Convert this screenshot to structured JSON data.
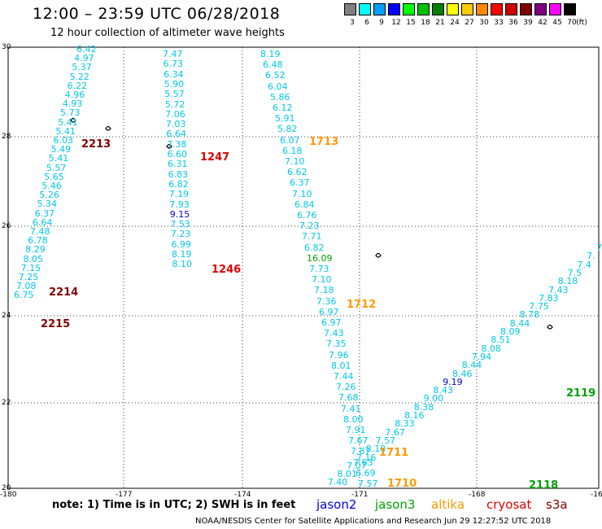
{
  "title": "12:00 – 23:59 UTC 06/28/2018",
  "subtitle": "12 hour collection of altimeter wave heights",
  "colorbar": {
    "unit": "(ft)",
    "entries": [
      {
        "label": "3",
        "color": "#808080"
      },
      {
        "label": "6",
        "color": "#00ffff"
      },
      {
        "label": "9",
        "color": "#00a0ff"
      },
      {
        "label": "12",
        "color": "#0000ff"
      },
      {
        "label": "15",
        "color": "#00ff00"
      },
      {
        "label": "18",
        "color": "#00c000"
      },
      {
        "label": "21",
        "color": "#008000"
      },
      {
        "label": "24",
        "color": "#ffff00"
      },
      {
        "label": "27",
        "color": "#ffcc00"
      },
      {
        "label": "30",
        "color": "#ff8800"
      },
      {
        "label": "33",
        "color": "#ff0000"
      },
      {
        "label": "36",
        "color": "#cc0000"
      },
      {
        "label": "39",
        "color": "#800000"
      },
      {
        "label": "42",
        "color": "#800080"
      },
      {
        "label": "45",
        "color": "#ff00ff"
      },
      {
        "label": "70",
        "color": "#000000"
      }
    ]
  },
  "axes": {
    "x_ticks": [
      "-180",
      "-177",
      "-174",
      "-171",
      "-168",
      "-16"
    ],
    "y_ticks": [
      "30",
      "28",
      "26",
      "24",
      "22",
      "20"
    ]
  },
  "tracks": [
    {
      "color": "#00c8e8",
      "labels": [
        "6.42",
        "4.97",
        "5.37",
        "5.22",
        "6.22",
        "4.96",
        "4.93",
        "5.73",
        "5.41",
        "5.41",
        "6.03",
        "5.49",
        "5.41",
        "5.57",
        "5.65",
        "5.46",
        "5.26",
        "5.34",
        "6.37",
        "6.64",
        "7.48",
        "6.78",
        "8.29",
        "8.05",
        "7.15",
        "7.25",
        "7.08",
        "6.75"
      ]
    },
    {
      "color": "#00c8e8",
      "labels": [
        "7.47",
        "6.73",
        "6.34",
        "5.90",
        "5.57",
        "5.72",
        "7.06",
        "7.03",
        "6.64",
        "7.38",
        "6.60",
        "6.31",
        "6.83",
        "6.82",
        "7.19",
        "7.93",
        "9.15",
        "7.53",
        "7.23",
        "6.99",
        "8.19",
        "8.10"
      ]
    },
    {
      "color": "#00c8e8",
      "labels": [
        "8.19",
        "6.48",
        "6.52",
        "6.04",
        "5.86",
        "6.12",
        "5.91",
        "5.82",
        "6.07",
        "6.18",
        "7.10",
        "6.62",
        "6.37",
        "7.10",
        "6.84",
        "6.76",
        "7.23",
        "7.71",
        "6.82",
        "16.09",
        "7.73",
        "7.10",
        "7.18",
        "7.36",
        "6.97",
        "6.97",
        "7.43",
        "7.35",
        "7.96",
        "8.01",
        "7.44",
        "7.26",
        "7.68",
        "7.41",
        "8.00",
        "7.91",
        "7.67",
        "7.87",
        "7.63",
        "6.69",
        "7.57"
      ]
    },
    {
      "color": "#00c8e8",
      "labels": [
        "7.",
        "7.",
        "7.4",
        "7.5",
        "8.18",
        "7.43",
        "7.83",
        "7.75",
        "8.78",
        "8.44",
        "8.09",
        "8.51",
        "8.08",
        "7.94",
        "8.44",
        "8.46",
        "9.19",
        "8.43",
        "9.00",
        "8.38",
        "8.16",
        "8.33",
        "7.67",
        "7.57",
        "8.10",
        "7.16",
        "7.07",
        "8.01",
        "7.40"
      ]
    }
  ],
  "time_labels": [
    "2213",
    "2214",
    "2215",
    "1247",
    "1246",
    "1713",
    "1712",
    "1711",
    "1710",
    "2119",
    "2118"
  ],
  "note": "note: 1) Time is in UTC; 2) SWH is in feet",
  "satellites": [
    {
      "name": "jason2",
      "color": "#0000dd"
    },
    {
      "name": "jason3",
      "color": "#00a000"
    },
    {
      "name": "altika",
      "color": "#ff9900"
    },
    {
      "name": "cryosat",
      "color": "#e00000"
    },
    {
      "name": "s3a",
      "color": "#800000"
    }
  ],
  "credit": "NOAA/NESDIS Center for Satellite Applications and Research   Jun 29 12:27:52 UTC 2018"
}
